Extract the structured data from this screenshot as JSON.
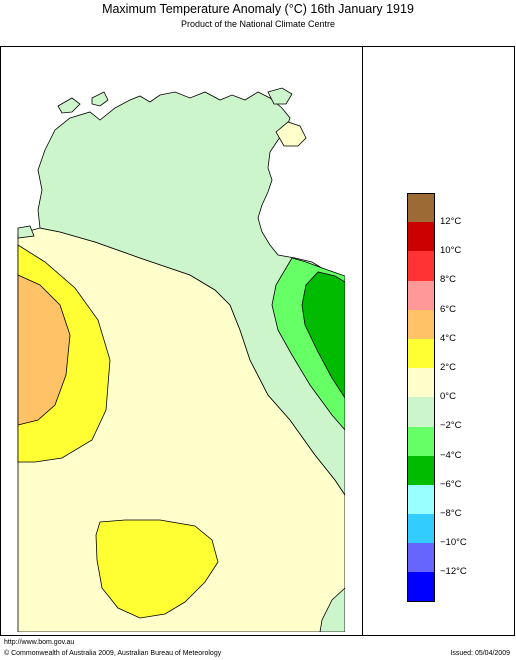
{
  "header": {
    "title": "Maximum Temperature Anomaly (°C)  16th January 1919",
    "subtitle": "Product of the National Climate Centre"
  },
  "legend": {
    "swatches": [
      "#9c6a34",
      "#cc0000",
      "#ff3333",
      "#ff9999",
      "#ffc266",
      "#ffff33",
      "#ffffcc",
      "#ccf5cc",
      "#66ff66",
      "#00bb00",
      "#99ffff",
      "#33ccff",
      "#6666ff",
      "#0000ff"
    ],
    "labels": [
      "12°C",
      "10°C",
      "8°C",
      "6°C",
      "4°C",
      "2°C",
      "0°C",
      "−2°C",
      "−4°C",
      "−6°C",
      "−8°C",
      "−10°C",
      "−12°C"
    ]
  },
  "footer": {
    "url": "http://www.bom.gov.au",
    "copyright": "© Commonwealth of Australia 2009, Australian Bureau of Meteorology",
    "issued": "Issued: 05/04/2009"
  },
  "colors": {
    "land_light_green": "#ccf5cc",
    "cream": "#ffffcc",
    "yellow": "#ffff33",
    "orange": "#ffc266",
    "mid_green": "#66ff66",
    "dark_green": "#00bb00"
  }
}
